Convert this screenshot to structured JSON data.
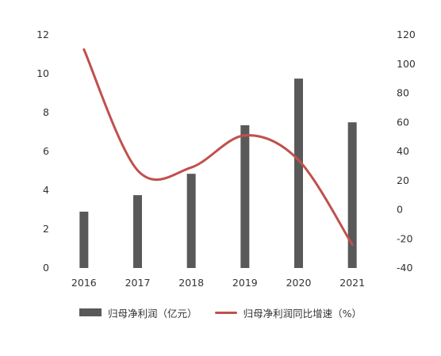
{
  "chart_data": {
    "type": "bar+line",
    "categories": [
      "2016",
      "2017",
      "2018",
      "2019",
      "2020",
      "2021"
    ],
    "series": [
      {
        "name": "归母净利润（亿元）",
        "type": "bar",
        "axis": "left",
        "values": [
          2.9,
          3.75,
          4.85,
          7.35,
          9.75,
          7.5
        ],
        "color": "#595959"
      },
      {
        "name": "归母净利润同比增速（%）",
        "type": "line",
        "axis": "right",
        "values": [
          110,
          27,
          29,
          51,
          34,
          -24
        ],
        "color": "#c0504d"
      }
    ],
    "y_left": {
      "min": 0,
      "max": 12,
      "ticks": [
        "0",
        "2",
        "4",
        "6",
        "8",
        "10",
        "12"
      ]
    },
    "y_right": {
      "min": -40,
      "max": 120,
      "ticks": [
        "-40",
        "-20",
        "0",
        "20",
        "40",
        "60",
        "80",
        "100",
        "120"
      ]
    },
    "grid": false,
    "legend": "bottom"
  }
}
